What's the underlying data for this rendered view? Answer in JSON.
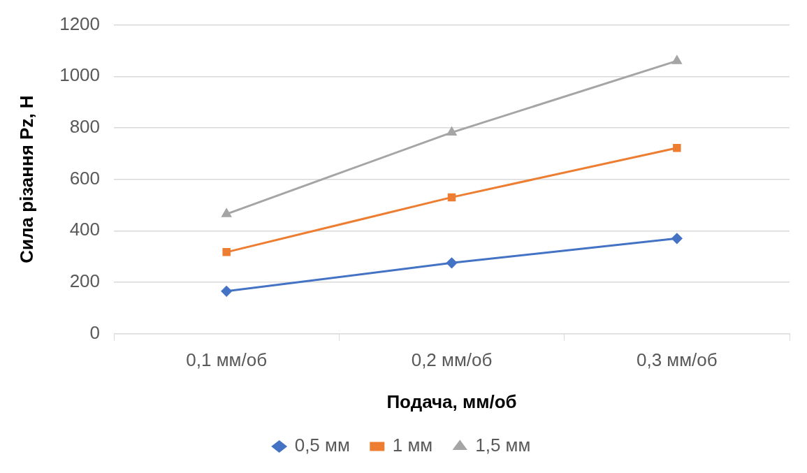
{
  "chart_data": {
    "type": "line",
    "xlabel": "Подача, мм/об",
    "ylabel": "Сила різання Pz, Н",
    "categories": [
      "0,1 мм/об",
      "0,2 мм/об",
      "0,3 мм/об"
    ],
    "series": [
      {
        "name": "0,5 мм",
        "color": "#4472c4",
        "marker": "diamond",
        "values": [
          165,
          275,
          370
        ]
      },
      {
        "name": "1 мм",
        "color": "#ed7d31",
        "marker": "square",
        "values": [
          317,
          530,
          722
        ]
      },
      {
        "name": "1,5 мм",
        "color": "#a5a5a5",
        "marker": "triangle",
        "values": [
          465,
          782,
          1060
        ]
      }
    ],
    "ylim": [
      0,
      1200
    ],
    "yticks": [
      0,
      200,
      400,
      600,
      800,
      1000,
      1200
    ],
    "grid": "y",
    "legend": "bottom",
    "line_style": "solid"
  }
}
